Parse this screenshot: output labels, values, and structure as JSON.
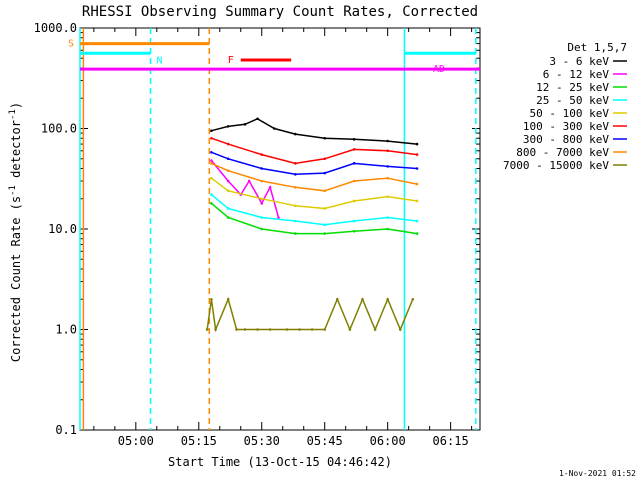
{
  "chart_data": {
    "type": "line",
    "title": "RHESSI Observing Summary Count Rates, Corrected",
    "xlabel": "Start Time (13-Oct-15 04:46:42)",
    "ylabel": "Corrected Count Rate (s⁻¹ detector⁻¹)",
    "yscale": "log",
    "ylim": [
      0.1,
      1000
    ],
    "ytick_labels": [
      "0.1",
      "1.0",
      "10.0",
      "100.0",
      "1000.0"
    ],
    "ytick_values": [
      0.1,
      1,
      10,
      100,
      1000
    ],
    "xlim": [
      "04:46:42",
      "06:22:00"
    ],
    "xtick_labels": [
      "05:00",
      "05:15",
      "05:30",
      "05:45",
      "06:00",
      "06:15"
    ],
    "xtick_values": [
      "05:00",
      "05:15",
      "05:30",
      "05:45",
      "06:00",
      "06:15"
    ],
    "legend_title": "Det 1,5,7",
    "legend_placement": "right",
    "series": [
      {
        "name": "3 - 6 keV",
        "color": "#000000",
        "x": [
          "05:18",
          "05:22",
          "05:26",
          "05:29",
          "05:33",
          "05:38",
          "05:45",
          "05:52",
          "06:00",
          "06:07"
        ],
        "values": [
          95,
          105,
          110,
          125,
          100,
          88,
          80,
          78,
          75,
          70
        ]
      },
      {
        "name": "6 - 12 keV",
        "color": "#ff00ff",
        "x": [
          "05:18",
          "05:22",
          "05:25",
          "05:27",
          "05:30",
          "05:32",
          "05:34"
        ],
        "values": [
          48,
          30,
          22,
          30,
          18,
          26,
          13
        ]
      },
      {
        "name": "12 - 25 keV",
        "color": "#00dd00",
        "x": [
          "05:18",
          "05:22",
          "05:30",
          "05:38",
          "05:45",
          "05:52",
          "06:00",
          "06:07"
        ],
        "values": [
          18,
          13,
          10,
          9,
          9,
          9.5,
          10,
          9
        ]
      },
      {
        "name": "25 - 50 keV",
        "color": "#00ffff",
        "x": [
          "05:18",
          "05:22",
          "05:30",
          "05:38",
          "05:45",
          "05:52",
          "06:00",
          "06:07"
        ],
        "values": [
          22,
          16,
          13,
          12,
          11,
          12,
          13,
          12
        ]
      },
      {
        "name": "50 - 100 keV",
        "color": "#ddcc00",
        "x": [
          "05:18",
          "05:22",
          "05:30",
          "05:38",
          "05:45",
          "05:52",
          "06:00",
          "06:07"
        ],
        "values": [
          32,
          24,
          20,
          17,
          16,
          19,
          21,
          19
        ]
      },
      {
        "name": "100 - 300 keV",
        "color": "#ff0000",
        "x": [
          "05:18",
          "05:22",
          "05:30",
          "05:38",
          "05:45",
          "05:52",
          "06:00",
          "06:07"
        ],
        "values": [
          80,
          70,
          55,
          45,
          50,
          62,
          60,
          55
        ]
      },
      {
        "name": "300 - 800 keV",
        "color": "#0000ff",
        "x": [
          "05:18",
          "05:22",
          "05:30",
          "05:38",
          "05:45",
          "05:52",
          "06:00",
          "06:07"
        ],
        "values": [
          58,
          50,
          40,
          35,
          36,
          45,
          42,
          40
        ]
      },
      {
        "name": "800 - 7000 keV",
        "color": "#ff8800",
        "x": [
          "05:18",
          "05:22",
          "05:30",
          "05:38",
          "05:45",
          "05:52",
          "06:00",
          "06:07"
        ],
        "values": [
          45,
          38,
          30,
          26,
          24,
          30,
          32,
          28
        ]
      },
      {
        "name": "7000 - 15000 keV",
        "color": "#808000",
        "x": [
          "05:17",
          "05:18",
          "05:19",
          "05:22",
          "05:24",
          "05:26",
          "05:29",
          "05:32",
          "05:36",
          "05:39",
          "05:42",
          "05:45",
          "05:48",
          "05:51",
          "05:54",
          "05:57",
          "06:00",
          "06:03",
          "06:06"
        ],
        "values": [
          1,
          2,
          1,
          2,
          1,
          1,
          1,
          1,
          1,
          1,
          1,
          1,
          2,
          1,
          2,
          1,
          2,
          1,
          2
        ]
      }
    ],
    "flag_bars": [
      {
        "label": "S",
        "color": "#ff8800",
        "y": 700,
        "start": "04:46:42",
        "end": "05:17:30"
      },
      {
        "label": "N",
        "color": "#00ffff",
        "y": 560,
        "start": "04:46:42",
        "end": "05:03:30"
      },
      {
        "label": "",
        "color": "#00ffff",
        "y": 560,
        "start": "06:04:00",
        "end": "06:21:00"
      },
      {
        "label": "F",
        "color": "#ff0000",
        "y": 480,
        "start": "05:25:00",
        "end": "05:37:00"
      },
      {
        "label": "AD",
        "color": "#ff00ff",
        "y": 390,
        "start": "04:46:42",
        "end": "06:22:00"
      }
    ],
    "vertical_markers": [
      {
        "time": "04:46:42",
        "color": "#00ffff",
        "style": "solid"
      },
      {
        "time": "04:47:30",
        "color": "#ff8800",
        "style": "solid"
      },
      {
        "time": "05:03:30",
        "color": "#00ffff",
        "style": "dashed"
      },
      {
        "time": "05:17:30",
        "color": "#ff8800",
        "style": "dashed"
      },
      {
        "time": "06:04:00",
        "color": "#00ffff",
        "style": "solid"
      },
      {
        "time": "06:21:00",
        "color": "#00ffff",
        "style": "dashed"
      }
    ],
    "grid": false
  },
  "footer": {
    "date": "1-Nov-2021 01:52"
  }
}
